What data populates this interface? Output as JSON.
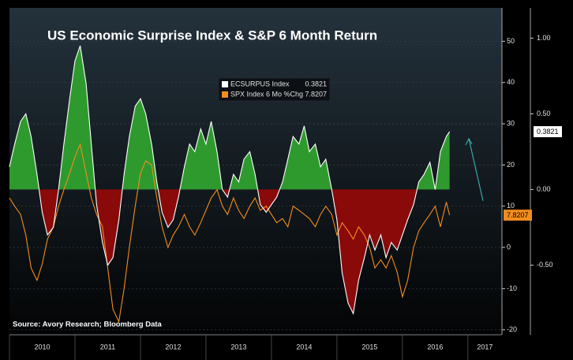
{
  "chart_data": {
    "type": "line",
    "title": "US Economic Surprise Index & S&P 6 Month Return",
    "source": "Source: Avory Research; Bloomberg Data",
    "x": [
      2010.0,
      2010.08,
      2010.17,
      2010.25,
      2010.33,
      2010.42,
      2010.5,
      2010.58,
      2010.67,
      2010.75,
      2010.83,
      2010.92,
      2011.0,
      2011.08,
      2011.17,
      2011.25,
      2011.33,
      2011.42,
      2011.5,
      2011.58,
      2011.67,
      2011.75,
      2011.83,
      2011.92,
      2012.0,
      2012.08,
      2012.17,
      2012.25,
      2012.33,
      2012.42,
      2012.5,
      2012.58,
      2012.67,
      2012.75,
      2012.83,
      2012.92,
      2013.0,
      2013.08,
      2013.17,
      2013.25,
      2013.33,
      2013.42,
      2013.5,
      2013.58,
      2013.67,
      2013.75,
      2013.83,
      2013.92,
      2014.0,
      2014.08,
      2014.17,
      2014.25,
      2014.33,
      2014.42,
      2014.5,
      2014.58,
      2014.67,
      2014.75,
      2014.83,
      2014.92,
      2015.0,
      2015.08,
      2015.17,
      2015.25,
      2015.33,
      2015.42,
      2015.5,
      2015.58,
      2015.67,
      2015.75,
      2015.83,
      2015.92,
      2016.0,
      2016.08,
      2016.17,
      2016.25,
      2016.33,
      2016.42,
      2016.5,
      2016.58,
      2016.67,
      2016.72
    ],
    "series": [
      {
        "name": "ECSURPUS Index",
        "color": "#ffffff",
        "axis": "y2",
        "positive_color": "#2e9a2e",
        "negative_color": "#8a0a0a",
        "values": [
          0.15,
          0.3,
          0.45,
          0.5,
          0.35,
          0.1,
          -0.15,
          -0.3,
          -0.25,
          0.0,
          0.3,
          0.6,
          0.85,
          0.95,
          0.7,
          0.3,
          -0.1,
          -0.35,
          -0.5,
          -0.45,
          -0.2,
          0.1,
          0.35,
          0.55,
          0.6,
          0.5,
          0.3,
          0.05,
          -0.15,
          -0.25,
          -0.2,
          -0.05,
          0.15,
          0.3,
          0.25,
          0.4,
          0.3,
          0.45,
          0.25,
          0.0,
          -0.05,
          0.1,
          0.05,
          0.2,
          0.25,
          0.1,
          -0.1,
          -0.15,
          -0.1,
          -0.05,
          0.05,
          0.2,
          0.35,
          0.3,
          0.42,
          0.25,
          0.3,
          0.15,
          0.2,
          0.0,
          -0.2,
          -0.55,
          -0.75,
          -0.82,
          -0.6,
          -0.45,
          -0.3,
          -0.4,
          -0.3,
          -0.45,
          -0.35,
          -0.4,
          -0.3,
          -0.2,
          -0.1,
          0.05,
          0.1,
          0.18,
          0.0,
          0.25,
          0.35,
          0.3821
        ]
      },
      {
        "name": "SPX Index 6 Mo %Chg",
        "color": "#f28c1e",
        "values": [
          12,
          10,
          8,
          3,
          -5,
          -8,
          -4,
          2,
          5,
          10,
          14,
          18,
          22,
          25,
          18,
          12,
          8,
          5,
          -5,
          -15,
          -18,
          -10,
          0,
          10,
          18,
          21,
          20,
          12,
          5,
          0,
          3,
          5,
          8,
          5,
          3,
          6,
          9,
          12,
          14,
          10,
          8,
          12,
          9,
          7,
          10,
          12,
          9,
          10,
          8,
          6,
          7,
          5,
          10,
          9,
          8,
          7,
          5,
          8,
          10,
          8,
          3,
          6,
          4,
          2,
          5,
          3,
          0,
          -5,
          -3,
          -5,
          -2,
          -6,
          -12,
          -8,
          0,
          4,
          6,
          8,
          10,
          5,
          11,
          7.8207
        ]
      }
    ],
    "xlim": [
      2010,
      2017.52
    ],
    "xticks": [
      2010,
      2011,
      2012,
      2013,
      2014,
      2015,
      2016,
      2017
    ],
    "ylim": [
      -21.2,
      58.1
    ],
    "yticks": [
      -20,
      -10,
      0,
      10,
      20,
      30,
      40,
      50
    ],
    "y2lim": [
      -0.96,
      1.2
    ],
    "y2ticks": [
      {
        "value": -0.5,
        "label": "-0.50"
      },
      {
        "value": 0,
        "label": "0.00"
      },
      {
        "value": 0.5,
        "label": "0.50"
      },
      {
        "value": 1,
        "label": "1.00"
      }
    ],
    "grid": true
  }
}
